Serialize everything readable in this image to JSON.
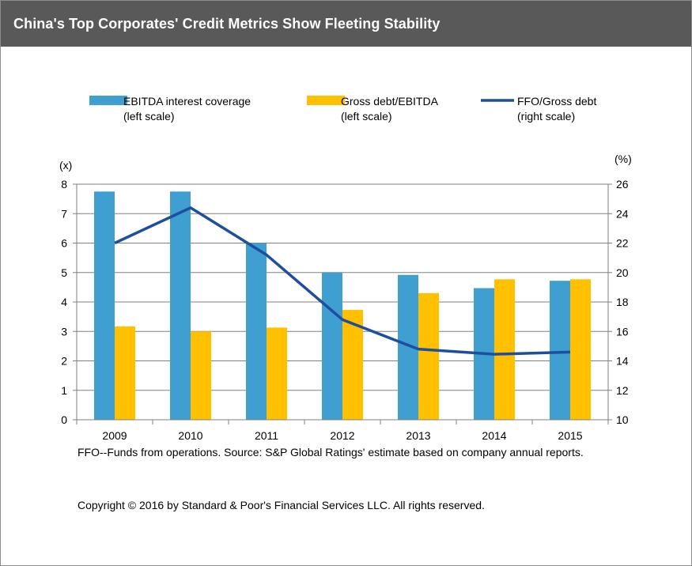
{
  "header": {
    "title": "China's Top Corporates' Credit Metrics Show Fleeting Stability"
  },
  "colors": {
    "coverage": "#3e9fd0",
    "debt": "#ffc000",
    "ffo": "#1f4e9e",
    "header_bg": "#595959"
  },
  "chart_data": {
    "type": "bar",
    "categories": [
      "2009",
      "2010",
      "2011",
      "2012",
      "2013",
      "2014",
      "2015"
    ],
    "series": [
      {
        "name": "EBITDA interest coverage",
        "scale_note": "(left scale)",
        "type": "bar",
        "axis": "left",
        "values": [
          7.75,
          7.75,
          6.0,
          5.0,
          4.92,
          4.47,
          4.72
        ]
      },
      {
        "name": "Gross debt/EBITDA",
        "scale_note": "(left scale)",
        "type": "bar",
        "axis": "left",
        "values": [
          3.17,
          3.0,
          3.13,
          3.73,
          4.3,
          4.77,
          4.77
        ]
      },
      {
        "name": "FFO/Gross debt",
        "scale_note": "(right scale)",
        "type": "line",
        "axis": "right",
        "values": [
          22.0,
          24.4,
          21.2,
          16.8,
          14.8,
          14.45,
          14.6
        ]
      }
    ],
    "left_axis": {
      "unit": "(x)",
      "range": [
        0,
        8
      ],
      "ticks": [
        "0",
        "1",
        "2",
        "3",
        "4",
        "5",
        "6",
        "7",
        "8"
      ]
    },
    "right_axis": {
      "unit": "(%)",
      "range": [
        10,
        26
      ],
      "ticks": [
        "10",
        "12",
        "14",
        "16",
        "18",
        "20",
        "22",
        "24",
        "26"
      ]
    },
    "grid": true,
    "legend_position": "top"
  },
  "footnote": "FFO--Funds from operations. Source: S&P Global Ratings' estimate based on company annual reports.",
  "copyright": "Copyright © 2016 by Standard & Poor's Financial Services LLC. All rights reserved."
}
